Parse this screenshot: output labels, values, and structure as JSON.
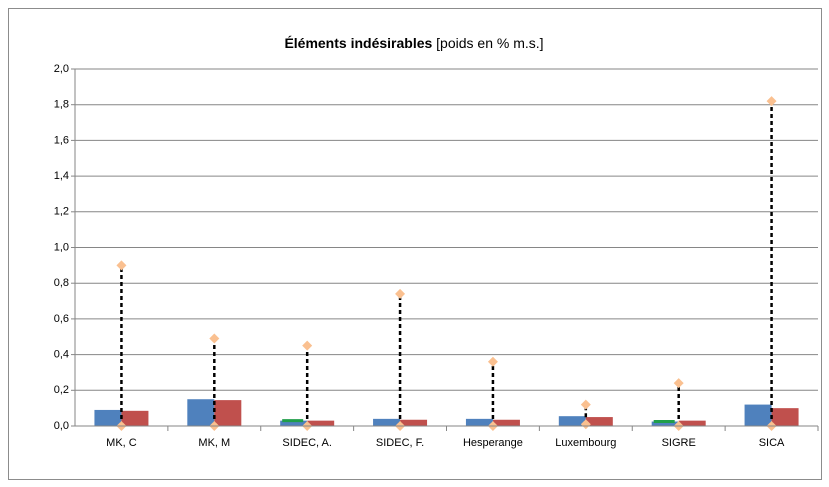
{
  "chart_data": {
    "type": "bar",
    "title": "Éléments indésirables",
    "title_suffix": "[poids en % m.s.]",
    "categories": [
      "MK, C",
      "MK, M",
      "SIDEC, A.",
      "SIDEC, F.",
      "Hesperange",
      "Luxembourg",
      "SIGRE",
      "SICA"
    ],
    "series": [
      {
        "color": "#4f81bd",
        "values": [
          0.09,
          0.15,
          0.03,
          0.04,
          0.04,
          0.055,
          0.025,
          0.12
        ]
      },
      {
        "color": "#c0504d",
        "values": [
          0.085,
          0.145,
          0.03,
          0.035,
          0.035,
          0.05,
          0.03,
          0.1
        ]
      },
      {
        "color": "#1f9e4a",
        "values": [
          null,
          null,
          0.03,
          null,
          null,
          null,
          0.025,
          null
        ]
      }
    ],
    "range": {
      "color": "#fac090",
      "low": [
        0,
        0,
        0,
        0,
        0,
        0.01,
        0,
        0
      ],
      "high": [
        0.9,
        0.49,
        0.45,
        0.74,
        0.36,
        0.12,
        0.24,
        1.82
      ]
    },
    "ylim": [
      0,
      2
    ],
    "yticks": [
      {
        "value": 0,
        "label": "0,0"
      },
      {
        "value": 0.2,
        "label": "0,2"
      },
      {
        "value": 0.4,
        "label": "0,4"
      },
      {
        "value": 0.6,
        "label": "0,6"
      },
      {
        "value": 0.8,
        "label": "0,8"
      },
      {
        "value": 1,
        "label": "1,0"
      },
      {
        "value": 1.2,
        "label": "1,2"
      },
      {
        "value": 1.4,
        "label": "1,4"
      },
      {
        "value": 1.6,
        "label": "1,6"
      },
      {
        "value": 1.8,
        "label": "1,8"
      },
      {
        "value": 2,
        "label": "2,0"
      }
    ],
    "grid": true
  }
}
